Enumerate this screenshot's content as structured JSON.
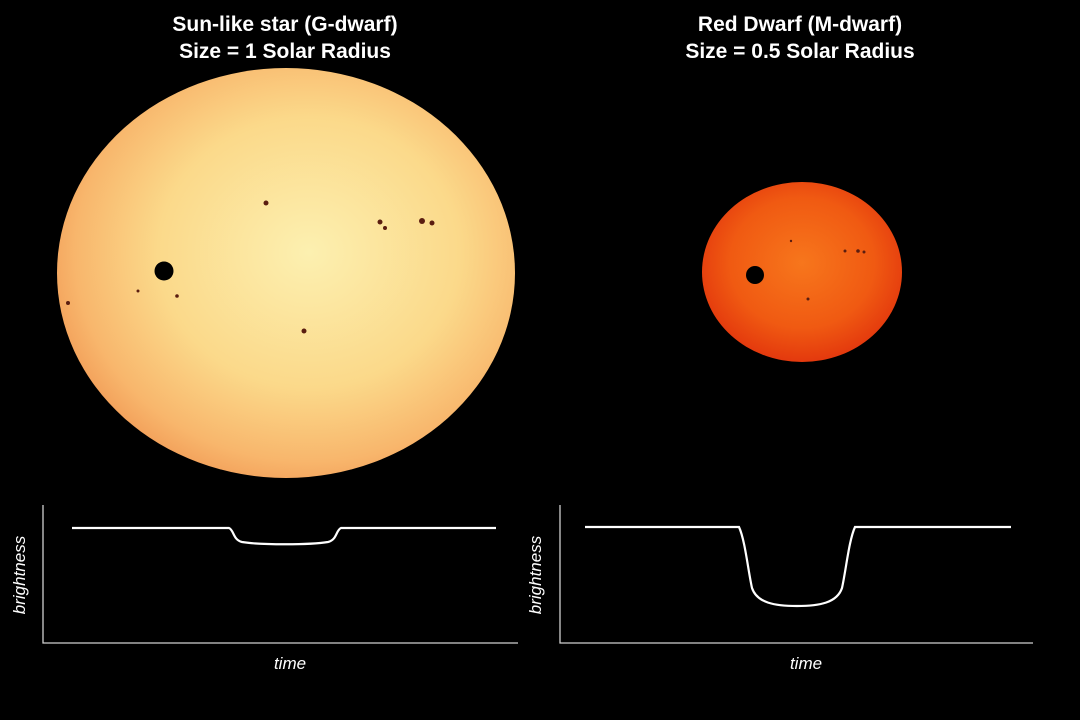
{
  "panels": [
    {
      "title": "Sun-like star (G-dwarf)",
      "subtitle": "Size = 1 Solar Radius",
      "y_label": "brightness",
      "x_label": "time"
    },
    {
      "title": "Red Dwarf (M-dwarf)",
      "subtitle": "Size = 0.5 Solar Radius",
      "y_label": "brightness",
      "x_label": "time"
    }
  ]
}
